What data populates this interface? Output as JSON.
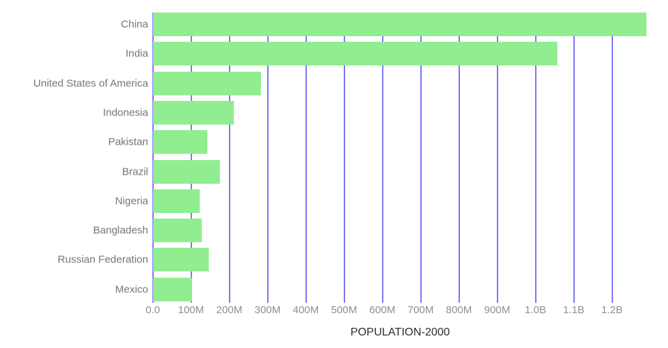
{
  "chart_data": {
    "type": "bar",
    "orientation": "horizontal",
    "title": "POPULATION-2000",
    "xlabel": "POPULATION-2000",
    "ylabel": "",
    "categories": [
      "China",
      "India",
      "United States of America",
      "Indonesia",
      "Pakistan",
      "Brazil",
      "Nigeria",
      "Bangladesh",
      "Russian Federation",
      "Mexico"
    ],
    "series": [
      {
        "name": "POPULATION-2000",
        "values_millions": [
          1290,
          1057,
          282,
          211,
          142,
          175,
          123,
          128,
          146,
          102
        ]
      }
    ],
    "x_axis": {
      "range_millions": [
        0,
        1293
      ],
      "ticks": [
        {
          "value_millions": 0,
          "label": "0.0"
        },
        {
          "value_millions": 100,
          "label": "100M"
        },
        {
          "value_millions": 200,
          "label": "200M"
        },
        {
          "value_millions": 300,
          "label": "300M"
        },
        {
          "value_millions": 400,
          "label": "400M"
        },
        {
          "value_millions": 500,
          "label": "500M"
        },
        {
          "value_millions": 600,
          "label": "600M"
        },
        {
          "value_millions": 700,
          "label": "700M"
        },
        {
          "value_millions": 800,
          "label": "800M"
        },
        {
          "value_millions": 900,
          "label": "900M"
        },
        {
          "value_millions": 1000,
          "label": "1.0B"
        },
        {
          "value_millions": 1100,
          "label": "1.1B"
        },
        {
          "value_millions": 1200,
          "label": "1.2B"
        }
      ]
    },
    "grid": true,
    "legend": false,
    "colors": {
      "bar": "#90ee90",
      "gridline": "#7b78f0",
      "category_label": "#757575",
      "tick_label": "#8f8f8f",
      "title": "#2d2d2d",
      "background": "#ffffff"
    }
  }
}
